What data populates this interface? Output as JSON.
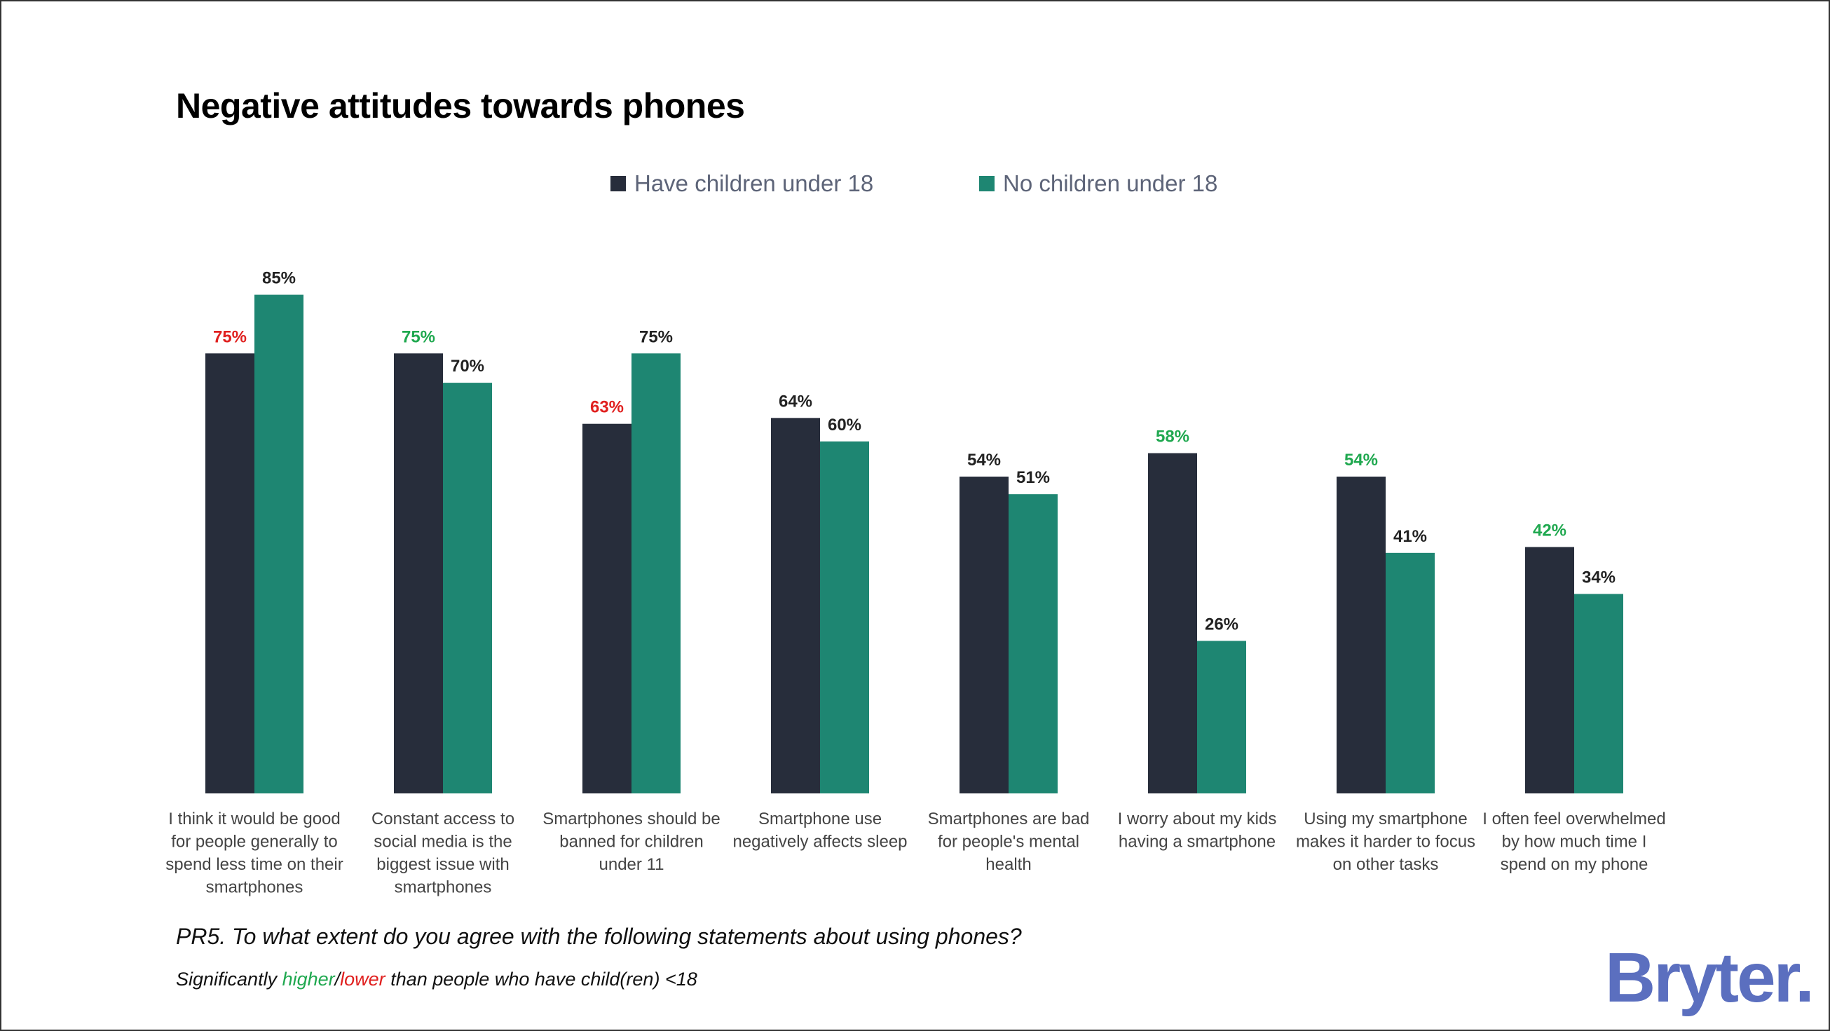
{
  "chart_data": {
    "type": "bar",
    "title": "Negative attitudes towards phones",
    "categories": [
      [
        "I think it would be good",
        "for people generally to",
        "spend less time on their",
        "smartphones"
      ],
      [
        "Constant access to",
        "social media is the",
        "biggest issue with",
        "smartphones"
      ],
      [
        "Smartphones should be",
        "banned for children",
        "under 11"
      ],
      [
        "Smartphone use",
        "negatively affects sleep"
      ],
      [
        "Smartphones are bad",
        "for people's mental",
        "health"
      ],
      [
        "I worry about my kids",
        "having a smartphone"
      ],
      [
        "Using my smartphone",
        "makes it harder to focus",
        "on other tasks"
      ],
      [
        "I often feel overwhelmed",
        "by how much time I",
        "spend on my phone"
      ]
    ],
    "series": [
      {
        "name": "Have children under 18",
        "color": "#272d3b",
        "values": [
          75,
          75,
          63,
          64,
          54,
          58,
          54,
          42
        ],
        "significance": [
          "lower",
          "higher",
          "lower",
          "none",
          "none",
          "higher",
          "higher",
          "higher"
        ]
      },
      {
        "name": "No children under 18",
        "color": "#1e8672",
        "values": [
          85,
          70,
          75,
          60,
          51,
          26,
          41,
          34
        ],
        "significance": [
          "none",
          "none",
          "none",
          "none",
          "none",
          "none",
          "none",
          "none"
        ]
      }
    ],
    "ylim": [
      0,
      100
    ],
    "grid": false,
    "legend_position": "top-center",
    "significance_colors": {
      "higher": "#1fa84f",
      "lower": "#e0201f",
      "none": "#222222"
    }
  },
  "question": "PR5. To what extent do you agree with the following statements about using phones?",
  "note": {
    "prefix": "Significantly ",
    "higher": "higher",
    "sep": "/",
    "lower": "lower",
    "suffix": " than people who have child(ren) <18"
  },
  "logo": "Bryter."
}
